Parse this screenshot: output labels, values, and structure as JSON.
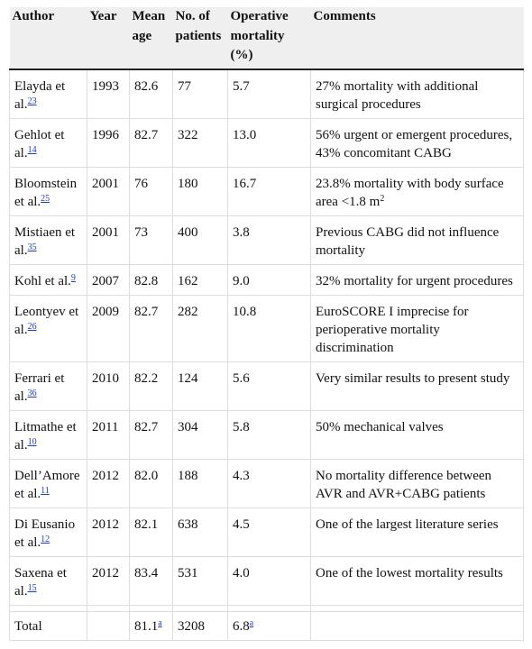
{
  "headers": [
    "Author",
    "Year",
    "Mean age",
    "No. of patients",
    "Operative mortality (%)",
    "Comments"
  ],
  "rows": [
    {
      "author": "Elayda et al.",
      "ref": "23",
      "year": "1993",
      "age": "82.6",
      "n": "77",
      "mort": "5.7",
      "comment": "27% mortality with additional surgical procedures"
    },
    {
      "author": "Gehlot et al.",
      "ref": "14",
      "year": "1996",
      "age": "82.7",
      "n": "322",
      "mort": "13.0",
      "comment": "56% urgent or emergent procedures, 43% concomitant CABG"
    },
    {
      "author": "Bloomstein et al.",
      "ref": "25",
      "year": "2001",
      "age": "76",
      "n": "180",
      "mort": "16.7",
      "comment": "23.8% mortality with body surface area <1.8 m",
      "comment_sup": "2"
    },
    {
      "author": "Mistiaen et al.",
      "ref": "35",
      "year": "2001",
      "age": "73",
      "n": "400",
      "mort": "3.8",
      "comment": "Previous CABG did not influence mortality"
    },
    {
      "author": "Kohl et al.",
      "ref": "9",
      "year": "2007",
      "age": "82.8",
      "n": "162",
      "mort": "9.0",
      "comment": "32% mortality for urgent procedures"
    },
    {
      "author": "Leontyev et al.",
      "ref": "26",
      "year": "2009",
      "age": "82.7",
      "n": "282",
      "mort": "10.8",
      "comment": "EuroSCORE I imprecise for perioperative mortality discrimination"
    },
    {
      "author": "Ferrari et al.",
      "ref": "36",
      "year": "2010",
      "age": "82.2",
      "n": "124",
      "mort": "5.6",
      "comment": "Very similar results to present study"
    },
    {
      "author": "Litmathe et al.",
      "ref": "10",
      "year": "2011",
      "age": "82.7",
      "n": "304",
      "mort": "5.8",
      "comment": "50% mechanical valves"
    },
    {
      "author": "Dell’Amore et al.",
      "ref": "11",
      "year": "2012",
      "age": "82.0",
      "n": "188",
      "mort": "4.3",
      "comment": "No mortality difference between AVR and AVR+CABG patients"
    },
    {
      "author": "Di Eusanio et al.",
      "ref": "12",
      "year": "2012",
      "age": "82.1",
      "n": "638",
      "mort": "4.5",
      "comment": "One of the largest literature series"
    },
    {
      "author": "Saxena et al.",
      "ref": "15",
      "year": "2012",
      "age": "83.4",
      "n": "531",
      "mort": "4.0",
      "comment": "One of the lowest mortality results"
    }
  ],
  "total": {
    "label": "Total",
    "age": "81.1",
    "age_note": "a",
    "n": "3208",
    "mort": "6.8",
    "mort_note": "a"
  },
  "colors": {
    "link": "#1a3ccc",
    "header_bg": "#efefef"
  }
}
